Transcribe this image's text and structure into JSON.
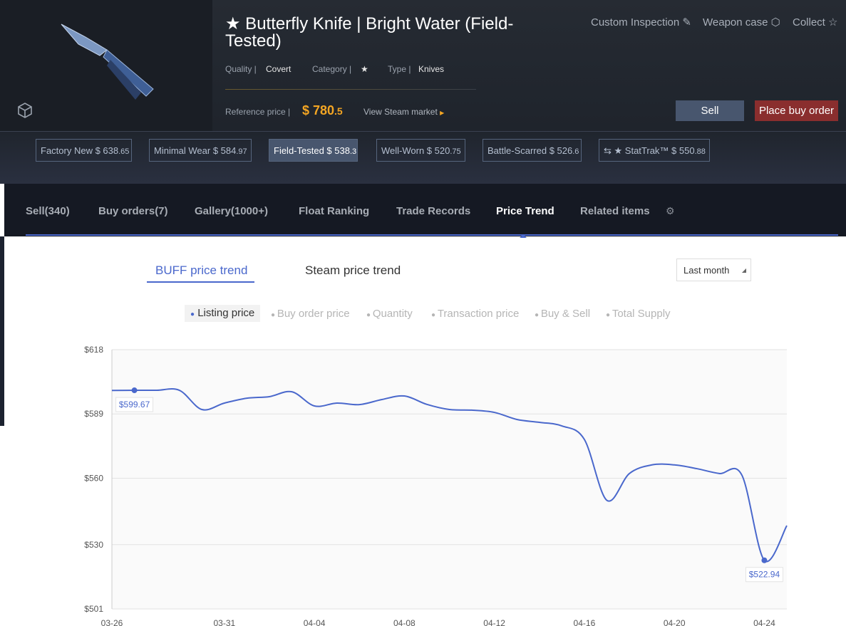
{
  "header": {
    "title": "★ Butterfly Knife | Bright Water (Field-Tested)",
    "quality_label": "Quality |",
    "quality": "Covert",
    "category_label": "Category |",
    "category": "★",
    "type_label": "Type |",
    "type": "Knives",
    "reference_label": "Reference price |",
    "price_main": "$ 780",
    "price_frac": ".5",
    "view_steam": "View Steam market",
    "actions": [
      "Custom Inspection",
      "Weapon case",
      "Collect"
    ],
    "sell": "Sell",
    "buy_order": "Place buy order"
  },
  "variants": [
    {
      "name": "Factory New $ 638",
      "frac": ".65"
    },
    {
      "name": "Minimal Wear $ 584",
      "frac": ".97"
    },
    {
      "name": "Field-Tested $ 538",
      "frac": ".3"
    },
    {
      "name": "Well-Worn $ 520",
      "frac": ".75"
    },
    {
      "name": "Battle-Scarred $ 526",
      "frac": ".6"
    },
    {
      "name": "★ StatTrak™ $ 550",
      "frac": ".88"
    }
  ],
  "tabs": [
    "Sell(340)",
    "Buy orders(7)",
    "Gallery(1000+)",
    "Float Ranking",
    "Trade Records",
    "Price Trend",
    "Related items"
  ],
  "trend": {
    "sources": [
      "BUFF price trend",
      "Steam price trend"
    ],
    "range": "Last month",
    "legend_inactive": [
      "Buy order price",
      "Quantity",
      "Transaction price",
      "Buy & Sell",
      "Total Supply"
    ]
  },
  "chart_data": {
    "type": "line",
    "categories": [
      "03-26",
      null,
      null,
      null,
      null,
      "03-31",
      null,
      null,
      null,
      "04-04",
      null,
      null,
      null,
      "04-08",
      null,
      null,
      null,
      "04-12",
      null,
      null,
      null,
      "04-16",
      null,
      null,
      null,
      "04-20",
      null,
      null,
      null,
      "04-24",
      null
    ],
    "series": [
      {
        "name": "Listing price",
        "color": "#4a68cc",
        "values": [
          599.6,
          599.67,
          599.67,
          599.67,
          591.0,
          593.9,
          596.1,
          596.8,
          599.0,
          592.6,
          593.9,
          593.2,
          595.5,
          597.1,
          593.3,
          591.0,
          590.7,
          589.7,
          586.5,
          585.2,
          583.6,
          577.5,
          550,
          562.1,
          566.0,
          566.0,
          564.3,
          562.1,
          561.4,
          522.94,
          538.6
        ],
        "value_labels": [
          null,
          "$599.67",
          null,
          null,
          null,
          null,
          null,
          null,
          null,
          null,
          null,
          null,
          null,
          null,
          null,
          null,
          null,
          null,
          null,
          null,
          null,
          null,
          null,
          null,
          null,
          null,
          null,
          null,
          null,
          "$522.94",
          null
        ]
      }
    ],
    "ylim": [
      501,
      618
    ],
    "yticks": [
      {
        "value": 501,
        "label": "$501"
      },
      {
        "value": 530,
        "label": "$530"
      },
      {
        "value": 560,
        "label": "$560"
      },
      {
        "value": 589,
        "label": "$589"
      },
      {
        "value": 618,
        "label": "$618"
      }
    ],
    "grid": true
  }
}
